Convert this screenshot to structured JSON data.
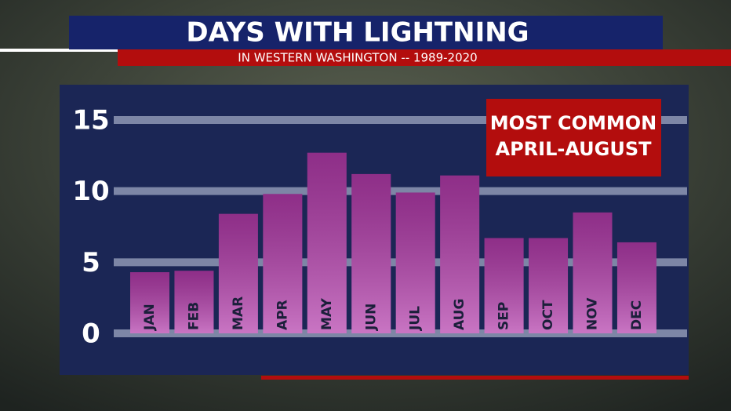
{
  "chart_data": {
    "type": "bar",
    "title": "DAYS WITH LIGHTNING",
    "subtitle": "IN WESTERN WASHINGTON -- 1989-2020",
    "annotation": [
      "MOST COMMON",
      "APRIL-AUGUST"
    ],
    "categories": [
      "JAN",
      "FEB",
      "MAR",
      "APR",
      "MAY",
      "JUN",
      "JUL",
      "AUG",
      "SEP",
      "OCT",
      "NOV",
      "DEC"
    ],
    "values": [
      4.3,
      4.4,
      8.4,
      9.8,
      12.7,
      11.2,
      9.9,
      11.1,
      6.7,
      6.7,
      8.5,
      6.4
    ],
    "color": "#b23aaa",
    "ylim": [
      0,
      15
    ],
    "yticks": [
      0,
      5,
      10,
      15
    ],
    "grid": true
  }
}
